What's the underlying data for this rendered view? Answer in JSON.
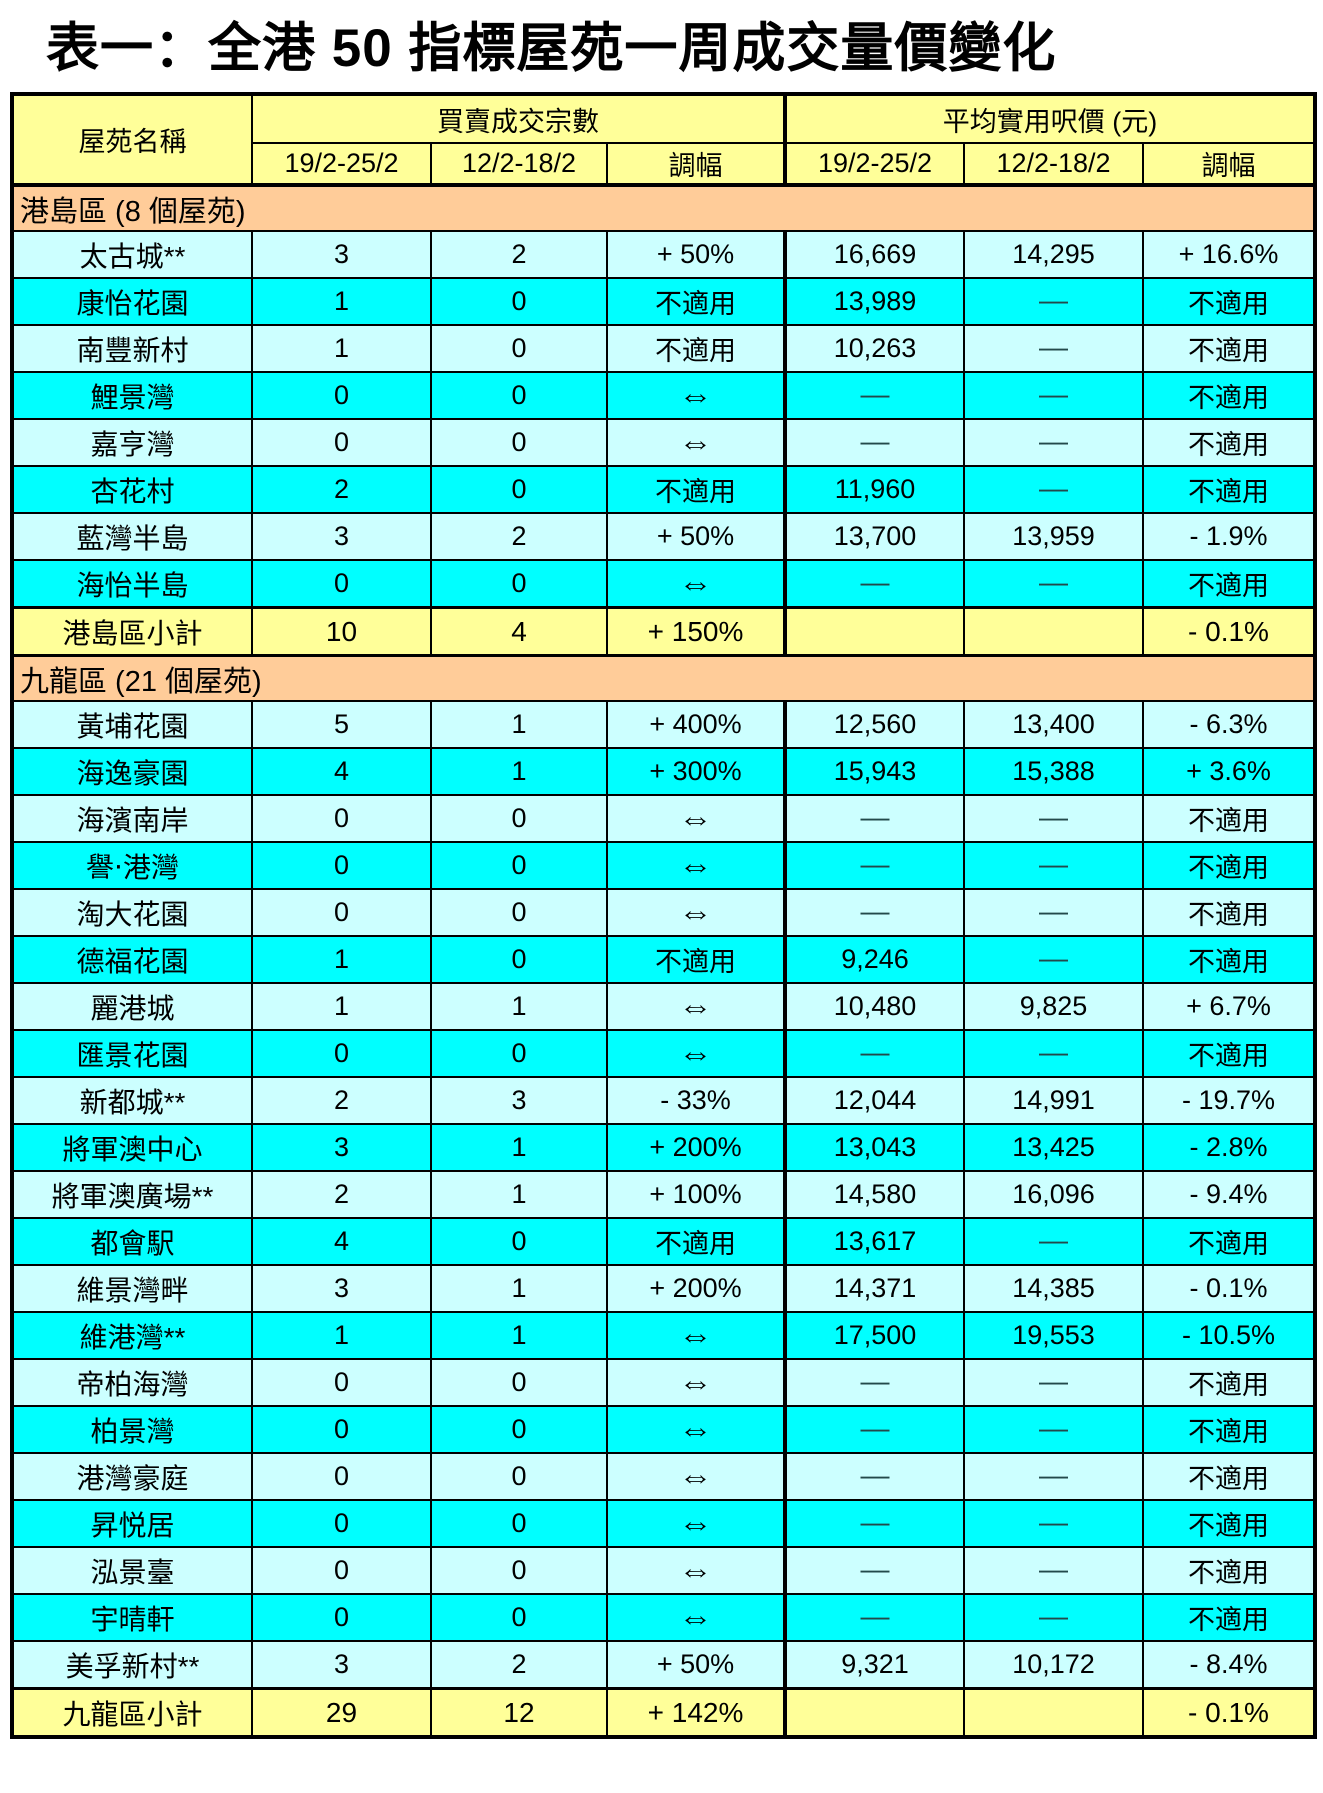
{
  "title": "表一：全港 50 指標屋苑一周成交量價變化",
  "colors": {
    "header_yellow": "#FFFF99",
    "section_orange": "#FFCC99",
    "row_light_cyan": "#CCFFFF",
    "row_cyan": "#00FFFF",
    "subtotal_yellow": "#FFFF99",
    "border_black": "#000000"
  },
  "symbols": {
    "no_change_arrow": "⇔",
    "not_applicable": "不適用",
    "empty_dash": "—"
  },
  "table": {
    "col_headers": {
      "estate": "屋苑名稱",
      "group1": "買賣成交宗數",
      "group2": "平均實用呎價 (元)",
      "period_current": "19/2-25/2",
      "period_previous": "12/2-18/2",
      "change": "調幅"
    },
    "sections": [
      {
        "header": "港島區 (8 個屋苑)",
        "rows": [
          [
            "太古城**",
            "3",
            "2",
            "+ 50%",
            "16,669",
            "14,295",
            "+ 16.6%"
          ],
          [
            "康怡花園",
            "1",
            "0",
            "不適用",
            "13,989",
            "—",
            "不適用"
          ],
          [
            "南豐新村",
            "1",
            "0",
            "不適用",
            "10,263",
            "—",
            "不適用"
          ],
          [
            "鯉景灣",
            "0",
            "0",
            "⇔",
            "—",
            "—",
            "不適用"
          ],
          [
            "嘉亨灣",
            "0",
            "0",
            "⇔",
            "—",
            "—",
            "不適用"
          ],
          [
            "杏花村",
            "2",
            "0",
            "不適用",
            "11,960",
            "—",
            "不適用"
          ],
          [
            "藍灣半島",
            "3",
            "2",
            "+ 50%",
            "13,700",
            "13,959",
            "- 1.9%"
          ],
          [
            "海怡半島",
            "0",
            "0",
            "⇔",
            "—",
            "—",
            "不適用"
          ]
        ],
        "subtotal": [
          "港島區小計",
          "10",
          "4",
          "+ 150%",
          "",
          "",
          "- 0.1%"
        ]
      },
      {
        "header": "九龍區 (21 個屋苑)",
        "rows": [
          [
            "黃埔花園",
            "5",
            "1",
            "+ 400%",
            "12,560",
            "13,400",
            "- 6.3%"
          ],
          [
            "海逸豪園",
            "4",
            "1",
            "+ 300%",
            "15,943",
            "15,388",
            "+ 3.6%"
          ],
          [
            "海濱南岸",
            "0",
            "0",
            "⇔",
            "—",
            "—",
            "不適用"
          ],
          [
            "譽‧港灣",
            "0",
            "0",
            "⇔",
            "—",
            "—",
            "不適用"
          ],
          [
            "淘大花園",
            "0",
            "0",
            "⇔",
            "—",
            "—",
            "不適用"
          ],
          [
            "德福花園",
            "1",
            "0",
            "不適用",
            "9,246",
            "—",
            "不適用"
          ],
          [
            "麗港城",
            "1",
            "1",
            "⇔",
            "10,480",
            "9,825",
            "+ 6.7%"
          ],
          [
            "匯景花園",
            "0",
            "0",
            "⇔",
            "—",
            "—",
            "不適用"
          ],
          [
            "新都城**",
            "2",
            "3",
            "- 33%",
            "12,044",
            "14,991",
            "- 19.7%"
          ],
          [
            "將軍澳中心",
            "3",
            "1",
            "+ 200%",
            "13,043",
            "13,425",
            "- 2.8%"
          ],
          [
            "將軍澳廣場**",
            "2",
            "1",
            "+ 100%",
            "14,580",
            "16,096",
            "- 9.4%"
          ],
          [
            "都會駅",
            "4",
            "0",
            "不適用",
            "13,617",
            "—",
            "不適用"
          ],
          [
            "維景灣畔",
            "3",
            "1",
            "+ 200%",
            "14,371",
            "14,385",
            "- 0.1%"
          ],
          [
            "維港灣**",
            "1",
            "1",
            "⇔",
            "17,500",
            "19,553",
            "- 10.5%"
          ],
          [
            "帝柏海灣",
            "0",
            "0",
            "⇔",
            "—",
            "—",
            "不適用"
          ],
          [
            "柏景灣",
            "0",
            "0",
            "⇔",
            "—",
            "—",
            "不適用"
          ],
          [
            "港灣豪庭",
            "0",
            "0",
            "⇔",
            "—",
            "—",
            "不適用"
          ],
          [
            "昇悦居",
            "0",
            "0",
            "⇔",
            "—",
            "—",
            "不適用"
          ],
          [
            "泓景臺",
            "0",
            "0",
            "⇔",
            "—",
            "—",
            "不適用"
          ],
          [
            "宇晴軒",
            "0",
            "0",
            "⇔",
            "—",
            "—",
            "不適用"
          ],
          [
            "美孚新村**",
            "3",
            "2",
            "+ 50%",
            "9,321",
            "10,172",
            "- 8.4%"
          ]
        ],
        "subtotal": [
          "九龍區小計",
          "29",
          "12",
          "+ 142%",
          "",
          "",
          "- 0.1%"
        ]
      }
    ]
  }
}
